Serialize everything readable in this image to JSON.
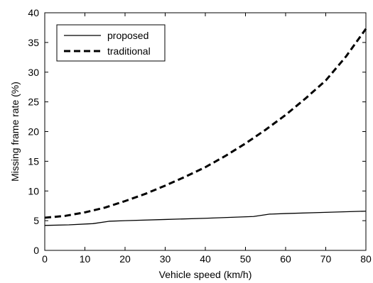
{
  "chart_data": {
    "type": "line",
    "title": "",
    "xlabel": "Vehicle speed (km/h)",
    "ylabel": "Missing frame rate (%)",
    "xlim": [
      0,
      80
    ],
    "ylim": [
      0,
      40
    ],
    "xticks": [
      0,
      10,
      20,
      30,
      40,
      50,
      60,
      70,
      80
    ],
    "yticks": [
      0,
      5,
      10,
      15,
      20,
      25,
      30,
      35,
      40
    ],
    "grid": false,
    "legend_position": "top-left",
    "series": [
      {
        "name": "proposed",
        "style": "solid",
        "color": "#000000",
        "x": [
          0,
          6,
          12,
          16,
          20,
          30,
          40,
          52,
          56,
          60,
          70,
          80
        ],
        "y": [
          4.2,
          4.3,
          4.5,
          4.9,
          5.0,
          5.2,
          5.4,
          5.7,
          6.1,
          6.2,
          6.4,
          6.6
        ]
      },
      {
        "name": "traditional",
        "style": "dashed",
        "color": "#000000",
        "x": [
          0,
          5,
          10,
          15,
          20,
          25,
          30,
          35,
          40,
          45,
          50,
          55,
          60,
          65,
          70,
          75,
          80
        ],
        "y": [
          5.5,
          5.8,
          6.4,
          7.2,
          8.3,
          9.5,
          10.9,
          12.4,
          14.0,
          15.9,
          18.0,
          20.3,
          22.8,
          25.6,
          28.6,
          32.6,
          37.3
        ]
      }
    ]
  }
}
